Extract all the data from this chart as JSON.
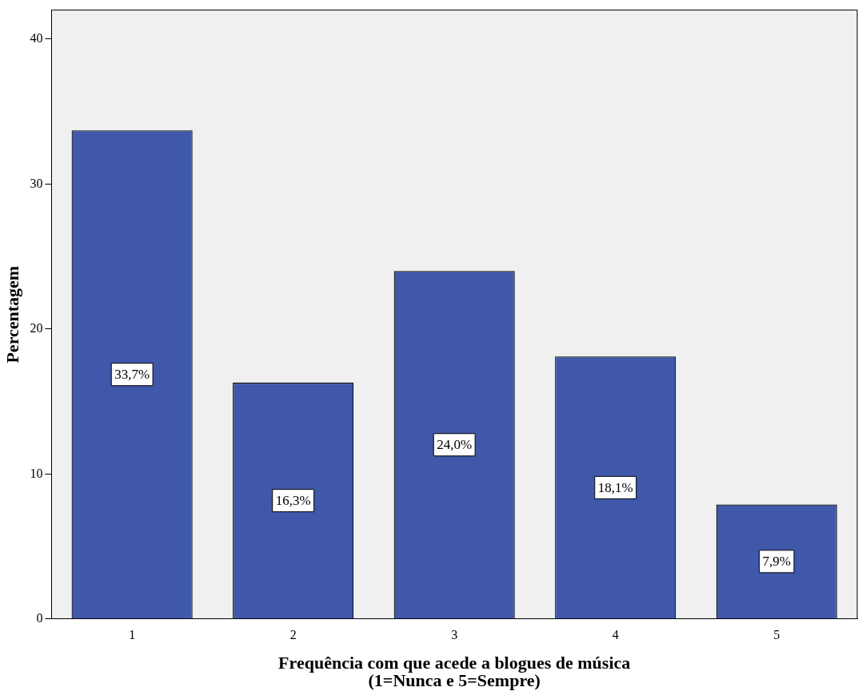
{
  "chart_data": {
    "type": "bar",
    "xlabel": "Frequência com que acede a blogues de música\n(1=Nunca e 5=Sempre)",
    "ylabel": "Percentagem",
    "categories": [
      "1",
      "2",
      "3",
      "4",
      "5"
    ],
    "values": [
      33.7,
      16.3,
      24.0,
      18.1,
      7.9
    ],
    "value_labels": [
      "33,7%",
      "16,3%",
      "24,0%",
      "18,1%",
      "7,9%"
    ],
    "color": "#3f58aa",
    "ylim": [
      0,
      42
    ],
    "yticks": [
      0,
      10,
      20,
      30,
      40
    ],
    "grid": false,
    "legend": false
  }
}
